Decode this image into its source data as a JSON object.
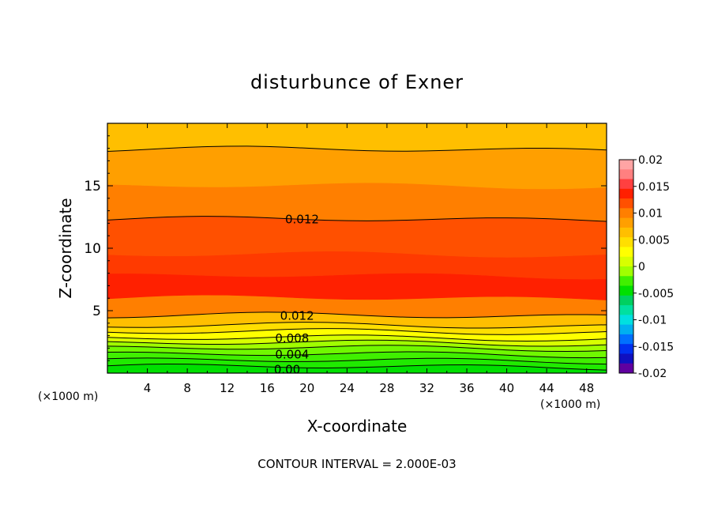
{
  "chart_data": {
    "type": "heatmap",
    "title": "disturbunce of Exner",
    "xlabel": "X-coordinate",
    "ylabel": "Z-coordinate",
    "x_unit_left": "(×1000 m)",
    "x_unit_right": "(×1000 m)",
    "footer": "CONTOUR INTERVAL = 2.000E-03",
    "xlim": [
      0,
      50
    ],
    "ylim": [
      0,
      20
    ],
    "x_ticks": [
      4,
      8,
      12,
      16,
      20,
      24,
      28,
      32,
      36,
      40,
      44,
      48
    ],
    "x_tick_labels": [
      "4",
      "8",
      "12",
      "16",
      "20",
      "24",
      "28",
      "32",
      "36",
      "40",
      "44",
      "48"
    ],
    "y_ticks": [
      5,
      10,
      15
    ],
    "y_tick_labels": [
      "5",
      "10",
      "15"
    ],
    "contour_interval": 0.002,
    "contour_labels": [
      {
        "text": "0.012",
        "x": 19.5,
        "z": 12.3
      },
      {
        "text": "0.012",
        "x": 19.0,
        "z": 4.6
      },
      {
        "text": "0.008",
        "x": 18.5,
        "z": 2.8
      },
      {
        "text": "0.004",
        "x": 18.5,
        "z": 1.5
      },
      {
        "text": "0.00",
        "x": 18.0,
        "z": 0.3
      }
    ],
    "colorbar": {
      "labels": [
        "0.02",
        "0.015",
        "0.01",
        "0.005",
        "0",
        "-0.005",
        "-0.01",
        "-0.015",
        "-0.02"
      ],
      "colors": [
        "#ffa4a4",
        "#ff8080",
        "#ff4040",
        "#ff2000",
        "#ff5000",
        "#ff7f00",
        "#ff9f00",
        "#ffbf00",
        "#ffdf00",
        "#ffff00",
        "#d8ff00",
        "#a0ff00",
        "#40f000",
        "#00e000",
        "#00d060",
        "#00e0a0",
        "#00e0e0",
        "#00b0f0",
        "#0070ff",
        "#0030f0",
        "#1010c0",
        "#6000a0"
      ]
    },
    "bands": [
      {
        "z_low": 0.0,
        "z_high": 0.5,
        "color": "#00e000",
        "value": 0.0
      },
      {
        "z_low": 0.5,
        "z_high": 1.0,
        "color": "#20ea00",
        "value": 0.001
      },
      {
        "z_low": 1.0,
        "z_high": 1.5,
        "color": "#40f000",
        "value": 0.002
      },
      {
        "z_low": 1.5,
        "z_high": 2.0,
        "color": "#70f800",
        "value": 0.003
      },
      {
        "z_low": 2.0,
        "z_high": 2.4,
        "color": "#a0ff00",
        "value": 0.004
      },
      {
        "z_low": 2.4,
        "z_high": 2.8,
        "color": "#d8ff00",
        "value": 0.005
      },
      {
        "z_low": 2.8,
        "z_high": 3.3,
        "color": "#ffff00",
        "value": 0.006
      },
      {
        "z_low": 3.3,
        "z_high": 3.8,
        "color": "#ffdf00",
        "value": 0.008
      },
      {
        "z_low": 3.8,
        "z_high": 4.6,
        "color": "#ffbf00",
        "value": 0.01
      },
      {
        "z_low": 4.6,
        "z_high": 6.0,
        "color": "#ff7f00",
        "value": 0.012
      },
      {
        "z_low": 6.0,
        "z_high": 7.8,
        "color": "#ff2000",
        "value": 0.014
      },
      {
        "z_low": 7.8,
        "z_high": 9.5,
        "color": "#ff3a00",
        "value": 0.014
      },
      {
        "z_low": 9.5,
        "z_high": 12.3,
        "color": "#ff5000",
        "value": 0.013
      },
      {
        "z_low": 12.3,
        "z_high": 15.0,
        "color": "#ff7f00",
        "value": 0.011
      },
      {
        "z_low": 15.0,
        "z_high": 17.9,
        "color": "#ff9f00",
        "value": 0.01
      },
      {
        "z_low": 17.9,
        "z_high": 20.0,
        "color": "#ffbf00",
        "value": 0.009
      }
    ]
  }
}
